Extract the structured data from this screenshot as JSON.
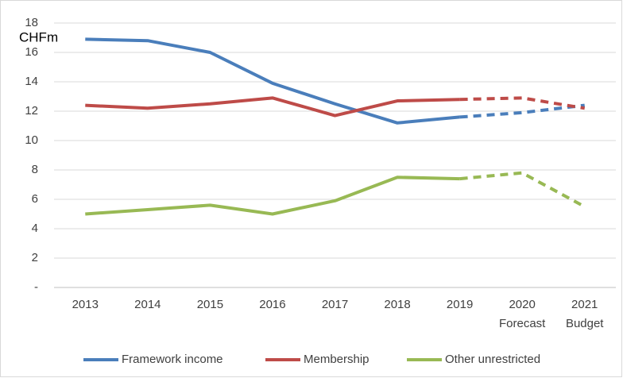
{
  "chart_data": {
    "type": "line",
    "y_label": "CHFm",
    "categories": [
      "2013",
      "2014",
      "2015",
      "2016",
      "2017",
      "2018",
      "2019",
      "2020",
      "2021"
    ],
    "category_notes": [
      null,
      null,
      null,
      null,
      null,
      null,
      null,
      "Forecast",
      "Budget"
    ],
    "dashed_from": 6,
    "series": [
      {
        "name": "Framework income",
        "color": "#4a7ebb",
        "values": [
          16.9,
          16.8,
          16.0,
          13.9,
          12.5,
          11.2,
          11.6,
          11.9,
          12.4
        ]
      },
      {
        "name": "Membership",
        "color": "#be4b48",
        "values": [
          12.4,
          12.2,
          12.5,
          12.9,
          11.7,
          12.7,
          12.8,
          12.9,
          12.2
        ]
      },
      {
        "name": "Other unrestricted",
        "color": "#98b954",
        "values": [
          5.0,
          5.3,
          5.6,
          5.0,
          5.9,
          7.5,
          7.4,
          7.8,
          5.5
        ]
      }
    ],
    "ylim": [
      0,
      18
    ],
    "yticks": [
      {
        "value": 0,
        "label": "-"
      },
      2,
      4,
      6,
      8,
      10,
      12,
      14,
      16,
      18
    ],
    "grid": true,
    "legend": "bottom"
  }
}
